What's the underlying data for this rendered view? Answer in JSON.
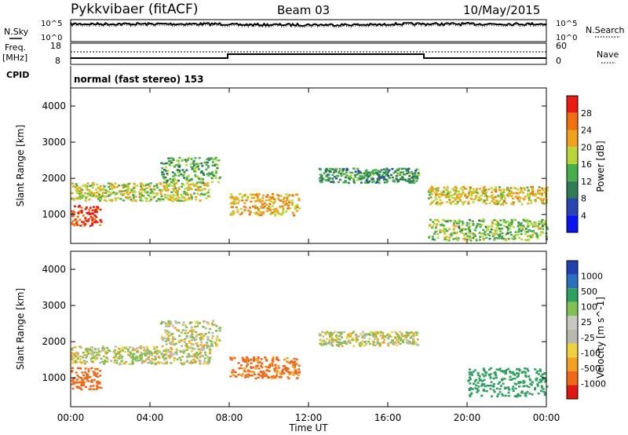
{
  "header": {
    "station": "Pykkvibaer (fitACF)",
    "beam": "Beam 03",
    "date": "10/May/2015"
  },
  "noise_panel": {
    "left_label": "N.Sky",
    "right_label": "N.Search",
    "left_ticks": [
      "10^5",
      "10^0"
    ],
    "right_ticks": [
      "10^5",
      "10^0"
    ]
  },
  "freq_panel": {
    "left_label_1": "Freq.",
    "left_label_2": "[MHz]",
    "right_label": "Nave",
    "left_ticks": [
      "18",
      "8"
    ],
    "right_ticks": [
      "60",
      "0"
    ]
  },
  "cpid": {
    "label": "CPID",
    "value": "normal (fast stereo) 153"
  },
  "colors": {
    "power": [
      "#0a14f0",
      "#2a45b0",
      "#2e7c55",
      "#48b04a",
      "#b9d638",
      "#f0a21c",
      "#f07010",
      "#e81e12"
    ],
    "velocity": [
      "#e01812",
      "#f06818",
      "#f0a220",
      "#f0d040",
      "#b8b8b0",
      "#c8c8c0",
      "#80c050",
      "#30a060",
      "#2a70c0",
      "#2040b0"
    ],
    "gray_scatter": "#bcbcb2"
  },
  "chart_data": [
    {
      "type": "heatmap",
      "name": "power",
      "ylabel": "Slant Range [km]",
      "xlabel": "",
      "ylim": [
        200,
        4500
      ],
      "yticks": [
        1000,
        2000,
        3000,
        4000
      ],
      "xlim_hours": [
        0,
        24
      ],
      "colorbar": {
        "label": "Power [dB]",
        "range": [
          0,
          32
        ],
        "ticks": [
          4,
          8,
          12,
          16,
          20,
          24,
          28
        ]
      },
      "echo_bands": [
        {
          "t": [
            0,
            1.5
          ],
          "range": [
            700,
            1300
          ],
          "power": 28
        },
        {
          "t": [
            0,
            7
          ],
          "range": [
            1400,
            1900
          ],
          "power": 18
        },
        {
          "t": [
            4.5,
            7.5
          ],
          "range": [
            1900,
            2600
          ],
          "power": 14
        },
        {
          "t": [
            8,
            11.5
          ],
          "range": [
            1000,
            1600
          ],
          "power": 22
        },
        {
          "t": [
            12.5,
            17.5
          ],
          "range": [
            1900,
            2300
          ],
          "power": 12
        },
        {
          "t": [
            18,
            24
          ],
          "range": [
            1300,
            1800
          ],
          "power": 20
        },
        {
          "t": [
            18,
            24
          ],
          "range": [
            300,
            900
          ],
          "power": 16
        }
      ]
    },
    {
      "type": "heatmap",
      "name": "velocity",
      "ylabel": "Slant Range [km]",
      "xlabel": "Time UT",
      "ylim": [
        200,
        4500
      ],
      "yticks": [
        1000,
        2000,
        3000,
        4000
      ],
      "xlim_hours": [
        0,
        24
      ],
      "xticks": [
        "00:00",
        "04:00",
        "08:00",
        "12:00",
        "16:00",
        "20:00",
        "00:00"
      ],
      "colorbar": {
        "label": "Velocity [m s^-1]",
        "ticks": [
          "1000",
          "500",
          "100",
          "25",
          "-25",
          "-100",
          "-500",
          "-1000"
        ]
      },
      "echo_bands": [
        {
          "t": [
            0,
            1.5
          ],
          "range": [
            700,
            1300
          ],
          "velocity": -400
        },
        {
          "t": [
            0,
            7
          ],
          "range": [
            1400,
            1900
          ],
          "velocity": 0
        },
        {
          "t": [
            4.5,
            7.5
          ],
          "range": [
            1900,
            2600
          ],
          "velocity": 0
        },
        {
          "t": [
            8,
            11.5
          ],
          "range": [
            1000,
            1600
          ],
          "velocity": -300
        },
        {
          "t": [
            12.5,
            17.5
          ],
          "range": [
            1900,
            2300
          ],
          "velocity": 0
        },
        {
          "t": [
            20,
            24
          ],
          "range": [
            500,
            1300
          ],
          "velocity": 400
        }
      ]
    }
  ]
}
